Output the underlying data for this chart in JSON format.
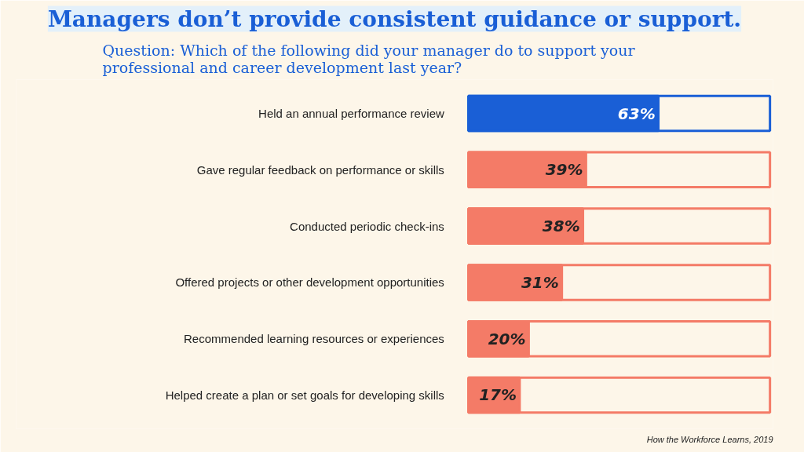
{
  "chart_data": {
    "type": "bar",
    "orientation": "horizontal",
    "title": "Managers don’t provide consistent guidance or support.",
    "subtitle": "Question: Which of the following did your manager do to support your professional and career development last year?",
    "categories": [
      "Held an annual performance review",
      "Gave regular feedback on performance or skills",
      "Conducted periodic check-ins",
      "Offered projects or other development opportunities",
      "Recommended learning resources or experiences",
      "Helped create a plan or set goals for developing skills"
    ],
    "values": [
      63,
      39,
      38,
      31,
      20,
      17
    ],
    "colors": [
      "#1a5fd6",
      "#f47b67",
      "#f47b67",
      "#f47b67",
      "#f47b67",
      "#f47b67"
    ],
    "value_labels": [
      "63%",
      "39%",
      "38%",
      "31%",
      "20%",
      "17%"
    ],
    "xlim": [
      0,
      100
    ],
    "tick_labels": "y",
    "grid": false,
    "annotations": [
      "How the Workforce Learns, 2019"
    ]
  }
}
